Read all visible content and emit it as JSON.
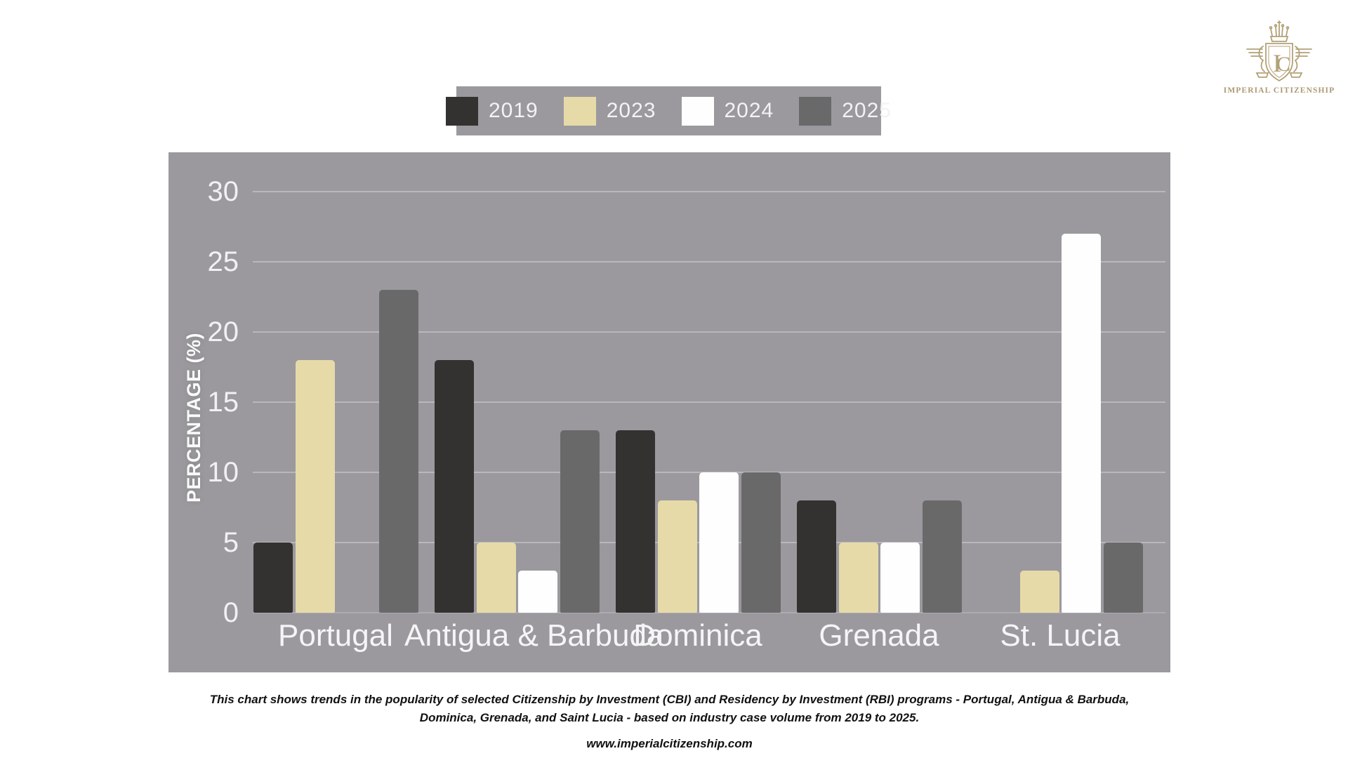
{
  "logo": {
    "brand": "IMPERIAL CITIZENSHIP",
    "monogram_i": "I",
    "monogram_c": "C",
    "gold": "#b2a077"
  },
  "legend": {
    "items": [
      {
        "label": "2019",
        "color": "#343231"
      },
      {
        "label": "2023",
        "color": "#e6daa8"
      },
      {
        "label": "2024",
        "color": "#fefefe"
      },
      {
        "label": "2025",
        "color": "#6a696a"
      }
    ]
  },
  "chart_data": {
    "type": "bar",
    "title": "",
    "categories": [
      "Portugal",
      "Antigua & Barbuda",
      "Dominica",
      "Grenada",
      "St. Lucia"
    ],
    "series": [
      {
        "name": "2019",
        "color": "#343231",
        "values": [
          5,
          18,
          13,
          8,
          null
        ]
      },
      {
        "name": "2023",
        "color": "#e6daa8",
        "values": [
          18,
          5,
          8,
          5,
          3
        ]
      },
      {
        "name": "2024",
        "color": "#fefefe",
        "values": [
          null,
          3,
          10,
          5,
          27
        ]
      },
      {
        "name": "2025",
        "color": "#6a696a",
        "values": [
          23,
          13,
          10,
          8,
          5
        ]
      }
    ],
    "xlabel": "",
    "ylabel": "PERCENTAGE (%)",
    "yticks": [
      0,
      5,
      10,
      15,
      20,
      25,
      30
    ],
    "ylim": [
      0,
      30
    ],
    "grid": true,
    "legend_position": "top",
    "plot_background": "#9b999e"
  },
  "footer": {
    "caption_line1": "This chart shows trends in the popularity of selected Citizenship by Investment (CBI) and Residency by Investment (RBI) programs - Portugal, Antigua & Barbuda,",
    "caption_line2": "Dominica, Grenada, and Saint Lucia - based on industry case volume from 2019 to 2025.",
    "website": "www.imperialcitizenship.com"
  }
}
